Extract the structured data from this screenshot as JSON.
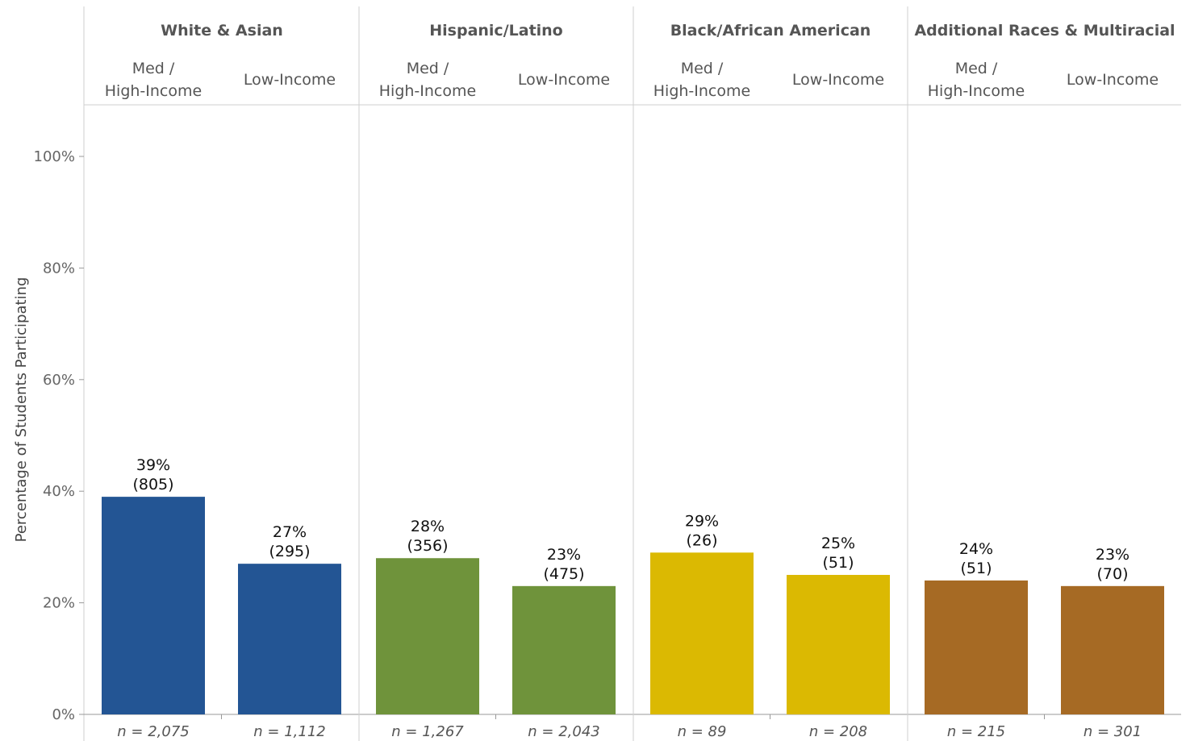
{
  "chart_data": {
    "type": "bar",
    "ylabel": "Percentage of Students Participating",
    "ylim": [
      0,
      1
    ],
    "yticks": [
      "0%",
      "20%",
      "40%",
      "60%",
      "80%",
      "100%"
    ],
    "ytick_values": [
      0,
      0.2,
      0.4,
      0.6,
      0.8,
      1.0
    ],
    "groups": [
      {
        "name": "White & Asian",
        "color": "#235594",
        "bars": [
          {
            "category": [
              "Med /",
              "High-Income"
            ],
            "value": 0.39,
            "pct_label": "39%",
            "count_label": "(805)",
            "n_label": "n = 2,075"
          },
          {
            "category": [
              "Low-Income"
            ],
            "value": 0.27,
            "pct_label": "27%",
            "count_label": "(295)",
            "n_label": "n = 1,112"
          }
        ]
      },
      {
        "name": "Hispanic/Latino",
        "color": "#6f933b",
        "bars": [
          {
            "category": [
              "Med /",
              "High-Income"
            ],
            "value": 0.28,
            "pct_label": "28%",
            "count_label": "(356)",
            "n_label": "n = 1,267"
          },
          {
            "category": [
              "Low-Income"
            ],
            "value": 0.23,
            "pct_label": "23%",
            "count_label": "(475)",
            "n_label": "n = 2,043"
          }
        ]
      },
      {
        "name": "Black/African American",
        "color": "#dbb902",
        "bars": [
          {
            "category": [
              "Med /",
              "High-Income"
            ],
            "value": 0.29,
            "pct_label": "29%",
            "count_label": "(26)",
            "n_label": "n = 89"
          },
          {
            "category": [
              "Low-Income"
            ],
            "value": 0.25,
            "pct_label": "25%",
            "count_label": "(51)",
            "n_label": "n = 208"
          }
        ]
      },
      {
        "name": "Additional Races & Multiracial",
        "color": "#a66a24",
        "bars": [
          {
            "category": [
              "Med /",
              "High-Income"
            ],
            "value": 0.24,
            "pct_label": "24%",
            "count_label": "(51)",
            "n_label": "n = 215"
          },
          {
            "category": [
              "Low-Income"
            ],
            "value": 0.23,
            "pct_label": "23%",
            "count_label": "(70)",
            "n_label": "n = 301"
          }
        ]
      }
    ],
    "grid": false,
    "legend": "none"
  }
}
